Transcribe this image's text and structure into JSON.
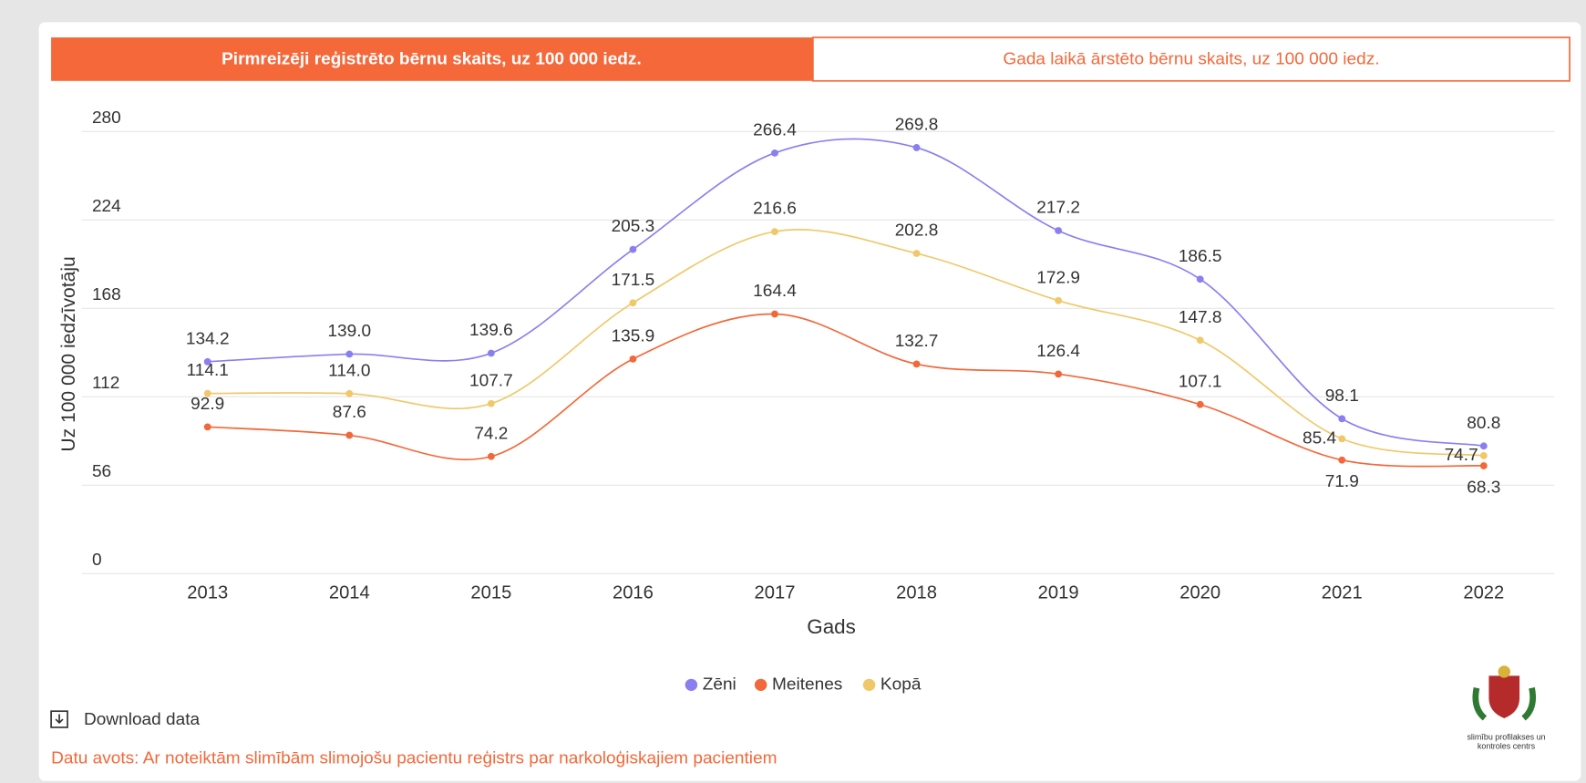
{
  "tabs": [
    "Pirmreizēji reģistrēto bērnu skaits, uz 100 000 iedz.",
    "Gada laikā ārstēto bērnu skaits, uz 100 000 iedz."
  ],
  "chart_data": {
    "type": "line",
    "y_label": "Uz 100 000 iedzīvotāju",
    "x_label": "Gads",
    "categories": [
      "2013",
      "2014",
      "2015",
      "2016",
      "2017",
      "2018",
      "2019",
      "2020",
      "2021",
      "2022"
    ],
    "series": [
      {
        "name": "Zēni",
        "color": "#8a7ff0",
        "values": [
          134.2,
          139.0,
          139.6,
          205.3,
          266.4,
          269.8,
          217.2,
          186.5,
          98.1,
          80.8
        ],
        "value_labels": [
          "134.2",
          "139.0",
          "139.6",
          "205.3",
          "266.4",
          "269.8",
          "217.2",
          "186.5",
          "98.1",
          "80.8"
        ]
      },
      {
        "name": "Meitenes",
        "color": "#f2683a",
        "values": [
          92.9,
          87.6,
          74.2,
          135.9,
          164.4,
          132.7,
          126.4,
          107.1,
          71.9,
          68.3
        ],
        "value_labels": [
          "92.9",
          "87.6",
          "74.2",
          "135.9",
          "164.4",
          "132.7",
          "126.4",
          "107.1",
          "71.9",
          "68.3"
        ]
      },
      {
        "name": "Kopā",
        "color": "#f0c86a",
        "values": [
          114.1,
          114.0,
          107.7,
          171.5,
          216.6,
          202.8,
          172.9,
          147.8,
          85.4,
          74.7
        ],
        "value_labels": [
          "114.1",
          "114.0",
          "107.7",
          "171.5",
          "216.6",
          "202.8",
          "172.9",
          "147.8",
          "85.4",
          "74.7"
        ]
      }
    ],
    "ylim": [
      0,
      280
    ],
    "yticks": [
      0,
      56,
      112,
      168,
      224,
      280
    ],
    "grid": true,
    "legend": "bottom"
  },
  "download": "Download data",
  "source": "Datu avots: Ar noteiktām slimībām slimojošu pacientu reģistrs par narkoloģiskajiem pacientiem",
  "logo_text": [
    "slimību profilakses un",
    "kontroles centrs"
  ]
}
